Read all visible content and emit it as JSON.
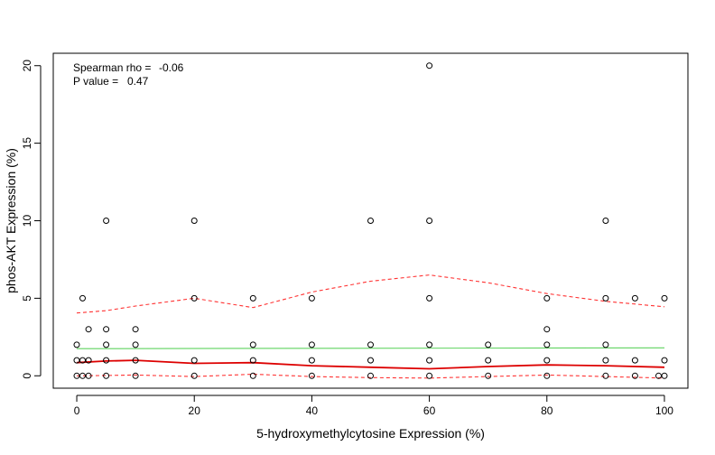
{
  "chart_data": {
    "type": "scatter",
    "title": "",
    "xlabel": "5-hydroxymethylcytosine Expression (%)",
    "ylabel": "phos-AKT Expression (%)",
    "xlim": [
      -4,
      104
    ],
    "ylim": [
      -0.8,
      20.8
    ],
    "xticks": [
      0,
      20,
      40,
      60,
      80,
      100
    ],
    "yticks": [
      0,
      5,
      10,
      15,
      20
    ],
    "grid": false,
    "annotations": [
      {
        "label": "Spearman rho =",
        "value": "-0.06"
      },
      {
        "label": "P value =",
        "value": "0.47"
      }
    ],
    "points": [
      {
        "x": 0,
        "y": 2
      },
      {
        "x": 0,
        "y": 1
      },
      {
        "x": 0,
        "y": 0
      },
      {
        "x": 1,
        "y": 1
      },
      {
        "x": 1,
        "y": 0
      },
      {
        "x": 1,
        "y": 5
      },
      {
        "x": 2,
        "y": 3
      },
      {
        "x": 2,
        "y": 1
      },
      {
        "x": 2,
        "y": 0
      },
      {
        "x": 5,
        "y": 10
      },
      {
        "x": 5,
        "y": 3
      },
      {
        "x": 5,
        "y": 2
      },
      {
        "x": 5,
        "y": 1
      },
      {
        "x": 5,
        "y": 0
      },
      {
        "x": 10,
        "y": 3
      },
      {
        "x": 10,
        "y": 2
      },
      {
        "x": 10,
        "y": 1
      },
      {
        "x": 10,
        "y": 0
      },
      {
        "x": 20,
        "y": 10
      },
      {
        "x": 20,
        "y": 5
      },
      {
        "x": 20,
        "y": 1
      },
      {
        "x": 20,
        "y": 0
      },
      {
        "x": 30,
        "y": 5
      },
      {
        "x": 30,
        "y": 2
      },
      {
        "x": 30,
        "y": 1
      },
      {
        "x": 30,
        "y": 0
      },
      {
        "x": 40,
        "y": 5
      },
      {
        "x": 40,
        "y": 2
      },
      {
        "x": 40,
        "y": 1
      },
      {
        "x": 40,
        "y": 0
      },
      {
        "x": 50,
        "y": 10
      },
      {
        "x": 50,
        "y": 2
      },
      {
        "x": 50,
        "y": 1
      },
      {
        "x": 50,
        "y": 0
      },
      {
        "x": 60,
        "y": 20
      },
      {
        "x": 60,
        "y": 10
      },
      {
        "x": 60,
        "y": 5
      },
      {
        "x": 60,
        "y": 2
      },
      {
        "x": 60,
        "y": 1
      },
      {
        "x": 60,
        "y": 0
      },
      {
        "x": 70,
        "y": 2
      },
      {
        "x": 70,
        "y": 1
      },
      {
        "x": 70,
        "y": 0
      },
      {
        "x": 80,
        "y": 5
      },
      {
        "x": 80,
        "y": 3
      },
      {
        "x": 80,
        "y": 2
      },
      {
        "x": 80,
        "y": 1
      },
      {
        "x": 80,
        "y": 0
      },
      {
        "x": 90,
        "y": 10
      },
      {
        "x": 90,
        "y": 5
      },
      {
        "x": 90,
        "y": 2
      },
      {
        "x": 90,
        "y": 1
      },
      {
        "x": 90,
        "y": 0
      },
      {
        "x": 95,
        "y": 5
      },
      {
        "x": 95,
        "y": 1
      },
      {
        "x": 95,
        "y": 0
      },
      {
        "x": 99,
        "y": 0
      },
      {
        "x": 100,
        "y": 5
      },
      {
        "x": 100,
        "y": 1
      },
      {
        "x": 100,
        "y": 0
      }
    ],
    "lines": [
      {
        "role": "linear-fit",
        "color": "#5fd35f",
        "dash": false,
        "x": [
          0,
          100
        ],
        "y": [
          1.75,
          1.8
        ]
      },
      {
        "role": "smooth-fit",
        "color": "#dd0000",
        "dash": false,
        "x": [
          0,
          5,
          10,
          20,
          30,
          40,
          50,
          60,
          70,
          80,
          90,
          100
        ],
        "y": [
          0.85,
          0.95,
          1.0,
          0.8,
          0.85,
          0.65,
          0.55,
          0.45,
          0.6,
          0.7,
          0.65,
          0.55
        ]
      },
      {
        "role": "upper-band",
        "color": "#ff3333",
        "dash": true,
        "x": [
          0,
          5,
          10,
          20,
          30,
          40,
          50,
          60,
          70,
          80,
          90,
          100
        ],
        "y": [
          4.05,
          4.2,
          4.5,
          5.0,
          4.4,
          5.4,
          6.1,
          6.5,
          6.0,
          5.3,
          4.8,
          4.45
        ]
      },
      {
        "role": "lower-band",
        "color": "#ff3333",
        "dash": true,
        "x": [
          0,
          5,
          10,
          20,
          30,
          40,
          50,
          60,
          70,
          80,
          90,
          100
        ],
        "y": [
          0.0,
          0.02,
          0.05,
          -0.05,
          0.1,
          -0.05,
          -0.12,
          -0.15,
          -0.05,
          0.05,
          -0.05,
          -0.15
        ]
      }
    ]
  }
}
